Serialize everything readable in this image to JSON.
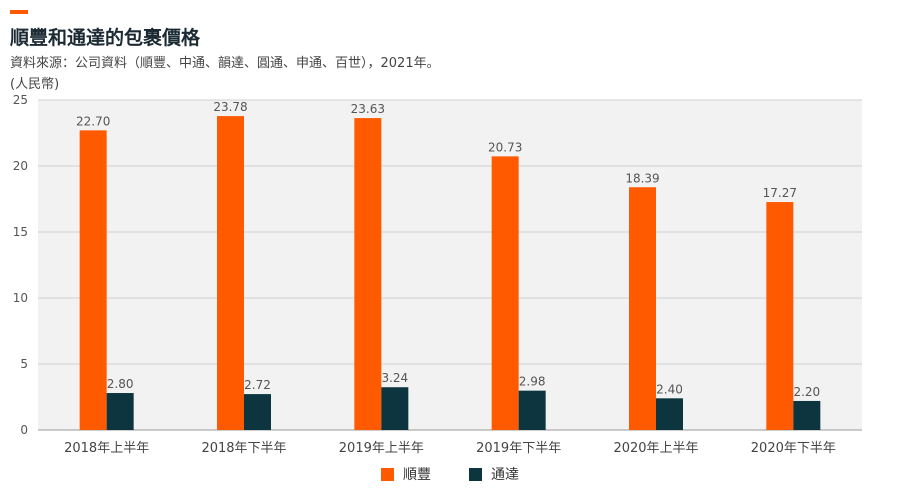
{
  "header": {
    "title": "順豐和通達的包裹價格",
    "source": "資料來源：公司資料（順豐、中通、韻達、圓通、申通、百世），2021年。",
    "unit": "(人民幣)"
  },
  "colors": {
    "accent": "#ff5a00",
    "sf": "#ff5a00",
    "tongda": "#0d3540",
    "plot_bg": "#f2f2f2",
    "grid": "#d0d0d0"
  },
  "chart_data": {
    "type": "bar",
    "title": "順豐和通達的包裹價格",
    "ylabel": "(人民幣)",
    "xlabel": "",
    "ylim": [
      0,
      25
    ],
    "yticks": [
      0,
      5,
      10,
      15,
      20,
      25
    ],
    "grid": true,
    "legend_position": "bottom",
    "categories": [
      "2018年上半年",
      "2018年下半年",
      "2019年上半年",
      "2019年下半年",
      "2020年上半年",
      "2020年下半年"
    ],
    "series": [
      {
        "name": "順豐",
        "color": "#ff5a00",
        "values": [
          22.7,
          23.78,
          23.63,
          20.73,
          18.39,
          17.27
        ],
        "labels": [
          "22.70",
          "23.78",
          "23.63",
          "20.73",
          "18.39",
          "17.27"
        ]
      },
      {
        "name": "通達",
        "color": "#0d3540",
        "values": [
          2.8,
          2.72,
          3.24,
          2.98,
          2.4,
          2.2
        ],
        "labels": [
          "2.80",
          "2.72",
          "3.24",
          "2.98",
          "2.40",
          "2.20"
        ]
      }
    ]
  }
}
